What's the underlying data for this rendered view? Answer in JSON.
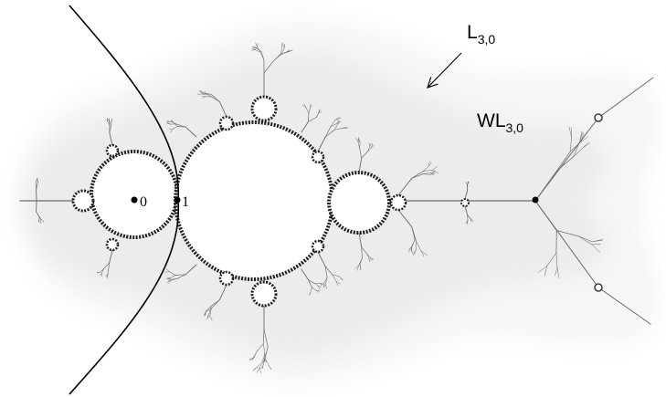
{
  "labels": {
    "curve_label": {
      "main": "L",
      "sub": "3,0"
    },
    "region_label": {
      "main": "WL",
      "sub": "3,0"
    },
    "point_0": "0",
    "point_1": "1"
  },
  "colors": {
    "background": "#ffffff",
    "outer_halo": "#f5f5f5",
    "inner_halo": "#e9e9e9",
    "filament": "#6b6b6b",
    "set_interior": "#ffffff",
    "ink": "#000000"
  }
}
